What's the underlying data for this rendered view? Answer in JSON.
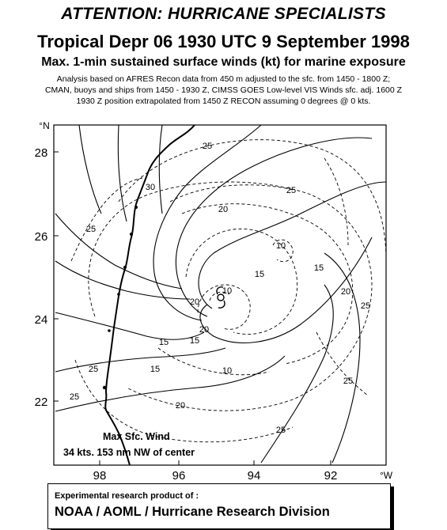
{
  "header": {
    "title": "ATTENTION: HURRICANE SPECIALISTS",
    "subtitle": "Tropical Depr 06 1930 UTC 9 September 1998",
    "product": "Max. 1-min sustained surface winds (kt) for marine exposure",
    "note_line1": "Analysis based on  AFRES Recon data from 450 m adjusted to the sfc. from 1450 - 1800 Z;",
    "note_line2": "CMAN, buoys and ships from 1450 - 1930 Z, CIMSS GOES Low-level VIS Winds sfc. adj. 1600 Z",
    "note_line3": "1930 Z position extrapolated from 1450 Z RECON assuming  0 degrees @ 0 kts."
  },
  "map": {
    "lat_ticks": [
      "28",
      "26",
      "24",
      "22"
    ],
    "lat_unit": "°N",
    "lon_ticks": [
      "98",
      "96",
      "94",
      "92"
    ],
    "lon_unit": "°W",
    "contour_labels": [
      "25",
      "25",
      "30",
      "25",
      "20",
      "10",
      "15",
      "20",
      "25",
      "25",
      "20",
      "10",
      "15",
      "10",
      "15",
      "15",
      "25",
      "25",
      "20",
      "20",
      "25",
      "15"
    ],
    "max_wind_line1": "Max Sfc. Wind",
    "max_wind_line2": "34 kts. 153 nm  NW of center"
  },
  "footer": {
    "credit_line1": "Experimental research product of :",
    "credit_line2": "NOAA / AOML / Hurricane Research Division"
  },
  "colors": {
    "ink": "#000000",
    "background": "#ffffff"
  }
}
